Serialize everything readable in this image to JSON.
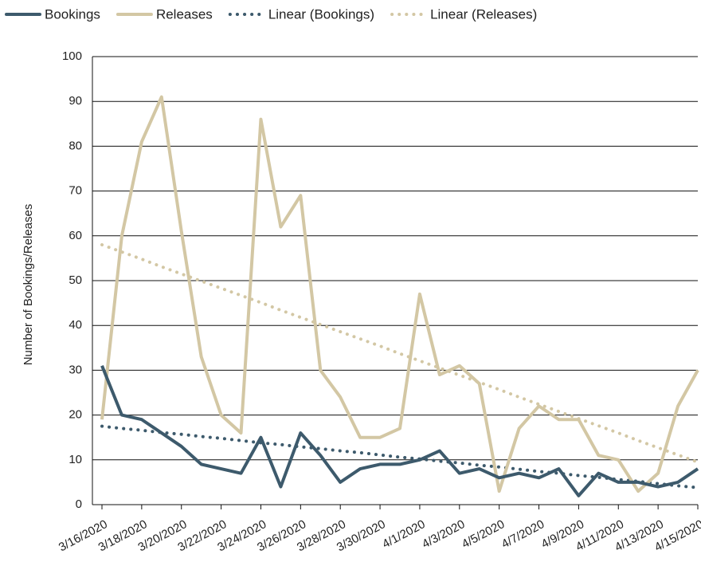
{
  "chart_data": {
    "type": "line",
    "y_label": "Number of Bookings/Releases",
    "categories": [
      "3/16/2020",
      null,
      "3/18/2020",
      null,
      "3/20/2020",
      null,
      "3/22/2020",
      null,
      "3/24/2020",
      null,
      "3/26/2020",
      null,
      "3/28/2020",
      null,
      "3/30/2020",
      null,
      "4/1/2020",
      null,
      "4/3/2020",
      null,
      "4/5/2020",
      null,
      "4/7/2020",
      null,
      "4/9/2020",
      null,
      "4/11/2020",
      null,
      "4/13/2020",
      null,
      "4/15/2020"
    ],
    "series": [
      {
        "name": "Bookings",
        "color": "#3d5a6c",
        "style": "solid",
        "values": [
          31,
          20,
          19,
          16,
          13,
          9,
          8,
          7,
          15,
          4,
          16,
          11,
          5,
          8,
          9,
          9,
          10,
          12,
          7,
          8,
          6,
          7,
          6,
          8,
          2,
          7,
          5,
          5,
          4,
          5,
          8
        ]
      },
      {
        "name": "Releases",
        "color": "#d3c7a4",
        "style": "solid",
        "values": [
          19,
          60,
          81,
          91,
          61,
          33,
          20,
          16,
          86,
          62,
          69,
          30,
          24,
          15,
          15,
          17,
          47,
          29,
          31,
          27,
          3,
          17,
          22,
          19,
          19,
          11,
          10,
          3,
          7,
          22,
          30
        ]
      },
      {
        "name": "Linear (Bookings)",
        "color": "#3d5a6c",
        "style": "dotted",
        "values": [
          17.5,
          17.0,
          16.6,
          16.1,
          15.7,
          15.2,
          14.8,
          14.3,
          13.8,
          13.4,
          12.9,
          12.5,
          12.0,
          11.6,
          11.1,
          10.6,
          10.2,
          9.7,
          9.3,
          8.8,
          8.4,
          7.9,
          7.4,
          7.0,
          6.5,
          6.1,
          5.6,
          5.2,
          4.7,
          4.2,
          3.8
        ]
      },
      {
        "name": "Linear (Releases)",
        "color": "#d3c7a4",
        "style": "dotted",
        "values": [
          58.0,
          56.4,
          54.8,
          53.1,
          51.5,
          49.9,
          48.3,
          46.7,
          45.1,
          43.4,
          41.8,
          40.2,
          38.6,
          37.0,
          35.4,
          33.7,
          32.1,
          30.5,
          28.9,
          27.3,
          25.7,
          24.0,
          22.4,
          20.8,
          19.2,
          17.6,
          16.0,
          14.3,
          12.7,
          11.1,
          9.5
        ]
      }
    ],
    "ylim": [
      0,
      100
    ],
    "yticks": [
      0,
      10,
      20,
      30,
      40,
      50,
      60,
      70,
      80,
      90,
      100
    ],
    "grid": true,
    "legend": "top"
  }
}
